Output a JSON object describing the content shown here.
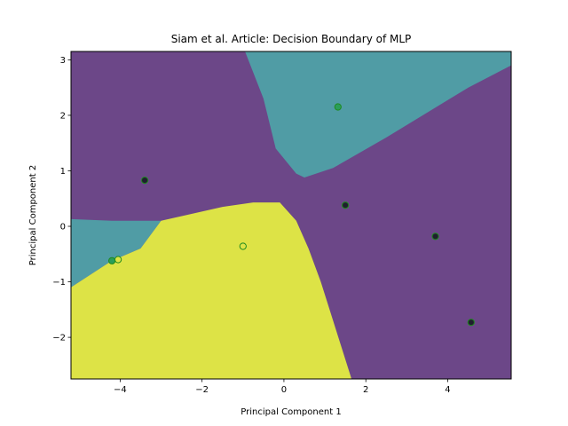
{
  "chart_data": {
    "type": "scatter",
    "title": "Siam et al. Article: Decision Boundary of MLP",
    "xlabel": "Principal Component 1",
    "ylabel": "Principal Component 2",
    "xlim": [
      -5.2,
      5.55
    ],
    "ylim": [
      -2.75,
      3.15
    ],
    "xticks": [
      -4,
      -2,
      0,
      2,
      4
    ],
    "yticks": [
      -2,
      -1,
      0,
      1,
      2,
      3
    ],
    "grid": false,
    "legend": "none",
    "region_colors": {
      "class_0": "#6c4788",
      "class_1": "#509ca5",
      "class_2": "#dde346"
    },
    "regions": [
      {
        "class": "class_1",
        "polygon": [
          [
            1.2,
            3.15
          ],
          [
            5.55,
            3.15
          ],
          [
            5.55,
            2.9
          ],
          [
            4.5,
            2.5
          ],
          [
            2.5,
            1.6
          ],
          [
            1.2,
            1.05
          ],
          [
            0.5,
            0.88
          ],
          [
            0.3,
            0.95
          ],
          [
            -0.2,
            1.4
          ],
          [
            -0.5,
            2.3
          ],
          [
            -0.95,
            3.15
          ]
        ]
      },
      {
        "class": "class_1",
        "polygon": [
          [
            -5.2,
            0.13
          ],
          [
            -4.2,
            0.1
          ],
          [
            -3.0,
            0.1
          ],
          [
            -3.5,
            -0.4
          ],
          [
            -4.2,
            -0.62
          ],
          [
            -5.2,
            -1.1
          ]
        ]
      },
      {
        "class": "class_2",
        "polygon": [
          [
            -5.2,
            -1.1
          ],
          [
            -4.2,
            -0.62
          ],
          [
            -3.5,
            -0.4
          ],
          [
            -3.0,
            0.1
          ],
          [
            -1.5,
            0.35
          ],
          [
            -0.75,
            0.43
          ],
          [
            -0.1,
            0.43
          ],
          [
            0.3,
            0.1
          ],
          [
            0.6,
            -0.4
          ],
          [
            0.9,
            -1.0
          ],
          [
            1.2,
            -1.7
          ],
          [
            1.65,
            -2.75
          ],
          [
            -5.2,
            -2.75
          ]
        ]
      }
    ],
    "points": [
      {
        "x": -3.4,
        "y": 0.83,
        "class": "class_0"
      },
      {
        "x": 1.5,
        "y": 0.38,
        "class": "class_0"
      },
      {
        "x": 3.7,
        "y": -0.18,
        "class": "class_0"
      },
      {
        "x": 4.57,
        "y": -1.73,
        "class": "class_0"
      },
      {
        "x": 1.32,
        "y": 2.15,
        "class": "class_1"
      },
      {
        "x": -4.2,
        "y": -0.62,
        "class": "class_1"
      },
      {
        "x": -1.0,
        "y": -0.36,
        "class": "class_2"
      },
      {
        "x": -4.05,
        "y": -0.6,
        "class": "class_2"
      }
    ],
    "point_fill": {
      "class_0": "#1f1f2e",
      "class_1": "#2a9e5a",
      "class_2": "#dde346"
    },
    "point_edge": "#1e8a1e"
  }
}
